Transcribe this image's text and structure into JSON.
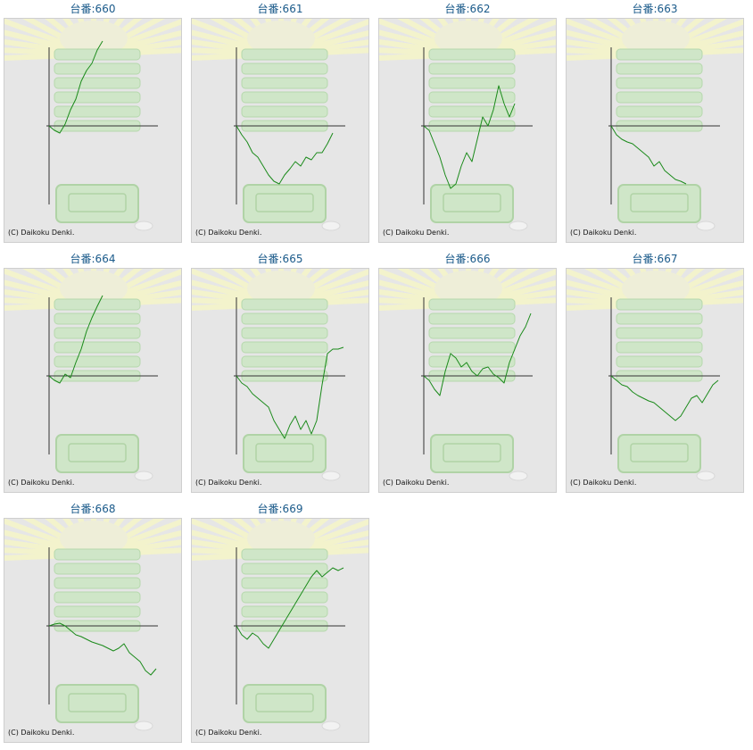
{
  "cards": [
    {
      "title": "台番:660",
      "copyright": "(C) Daikoku Denki."
    },
    {
      "title": "台番:661",
      "copyright": "(C) Daikoku Denki."
    },
    {
      "title": "台番:662",
      "copyright": "(C) Daikoku Denki."
    },
    {
      "title": "台番:663",
      "copyright": "(C) Daikoku Denki."
    },
    {
      "title": "台番:664",
      "copyright": "(C) Daikoku Denki."
    },
    {
      "title": "台番:665",
      "copyright": "(C) Daikoku Denki."
    },
    {
      "title": "台番:666",
      "copyright": "(C) Daikoku Denki."
    },
    {
      "title": "台番:667",
      "copyright": "(C) Daikoku Denki."
    },
    {
      "title": "台番:668",
      "copyright": "(C) Daikoku Denki."
    },
    {
      "title": "台番:669",
      "copyright": "(C) Daikoku Denki."
    }
  ],
  "colors": {
    "line": "#1a8a1a",
    "axis": "#333333",
    "title": "#1a5a8a",
    "panel_bg": "#e6e6e6"
  },
  "chart_data": [
    {
      "type": "line",
      "title": "台番:660",
      "xlim": [
        0,
        1
      ],
      "ylim": [
        -1,
        1
      ],
      "x": [
        0,
        0.05,
        0.1,
        0.15,
        0.2,
        0.25,
        0.3,
        0.35,
        0.4,
        0.45,
        0.5
      ],
      "values": [
        0,
        -0.05,
        -0.08,
        0.02,
        0.18,
        0.3,
        0.5,
        0.62,
        0.7,
        0.85,
        0.95
      ]
    },
    {
      "type": "line",
      "title": "台番:661",
      "xlim": [
        0,
        1
      ],
      "ylim": [
        -1,
        1
      ],
      "x": [
        0,
        0.05,
        0.1,
        0.15,
        0.2,
        0.25,
        0.3,
        0.35,
        0.4,
        0.45,
        0.5,
        0.55,
        0.6,
        0.65,
        0.7,
        0.75,
        0.8,
        0.85,
        0.9
      ],
      "values": [
        0,
        -0.1,
        -0.18,
        -0.3,
        -0.35,
        -0.45,
        -0.55,
        -0.62,
        -0.65,
        -0.55,
        -0.48,
        -0.4,
        -0.45,
        -0.35,
        -0.38,
        -0.3,
        -0.3,
        -0.2,
        -0.08
      ]
    },
    {
      "type": "line",
      "title": "台番:662",
      "xlim": [
        0,
        1
      ],
      "ylim": [
        -1,
        1
      ],
      "x": [
        0,
        0.05,
        0.1,
        0.15,
        0.2,
        0.25,
        0.3,
        0.35,
        0.4,
        0.45,
        0.5,
        0.55,
        0.6,
        0.65,
        0.7,
        0.75,
        0.8,
        0.85
      ],
      "values": [
        0,
        -0.05,
        -0.2,
        -0.35,
        -0.55,
        -0.7,
        -0.65,
        -0.45,
        -0.3,
        -0.4,
        -0.15,
        0.1,
        0.0,
        0.18,
        0.45,
        0.25,
        0.1,
        0.25
      ]
    },
    {
      "type": "line",
      "title": "台番:663",
      "xlim": [
        0,
        1
      ],
      "ylim": [
        -1,
        1
      ],
      "x": [
        0,
        0.05,
        0.1,
        0.15,
        0.2,
        0.25,
        0.3,
        0.35,
        0.4,
        0.45,
        0.5,
        0.55,
        0.6,
        0.65,
        0.7
      ],
      "values": [
        0,
        -0.1,
        -0.15,
        -0.18,
        -0.2,
        -0.25,
        -0.3,
        -0.35,
        -0.45,
        -0.4,
        -0.5,
        -0.55,
        -0.6,
        -0.62,
        -0.65
      ]
    },
    {
      "type": "line",
      "title": "台番:664",
      "xlim": [
        0,
        1
      ],
      "ylim": [
        -1,
        1
      ],
      "x": [
        0,
        0.05,
        0.1,
        0.15,
        0.2,
        0.25,
        0.3,
        0.35,
        0.4,
        0.45,
        0.5
      ],
      "values": [
        0,
        -0.05,
        -0.08,
        0.02,
        -0.02,
        0.15,
        0.3,
        0.5,
        0.65,
        0.78,
        0.9
      ]
    },
    {
      "type": "line",
      "title": "台番:665",
      "xlim": [
        0,
        1
      ],
      "ylim": [
        -1,
        1
      ],
      "x": [
        0,
        0.05,
        0.1,
        0.15,
        0.2,
        0.25,
        0.3,
        0.35,
        0.4,
        0.45,
        0.5,
        0.55,
        0.6,
        0.65,
        0.7,
        0.75,
        0.8,
        0.85,
        0.9,
        0.95,
        1.0
      ],
      "values": [
        0,
        -0.08,
        -0.12,
        -0.2,
        -0.25,
        -0.3,
        -0.35,
        -0.5,
        -0.6,
        -0.7,
        -0.55,
        -0.45,
        -0.6,
        -0.5,
        -0.65,
        -0.5,
        -0.1,
        0.25,
        0.3,
        0.3,
        0.32
      ]
    },
    {
      "type": "line",
      "title": "台番:666",
      "xlim": [
        0,
        1
      ],
      "ylim": [
        -1,
        1
      ],
      "x": [
        0,
        0.05,
        0.1,
        0.15,
        0.2,
        0.25,
        0.3,
        0.35,
        0.4,
        0.45,
        0.5,
        0.55,
        0.6,
        0.65,
        0.7,
        0.75,
        0.8,
        0.85,
        0.9,
        0.95,
        1.0
      ],
      "values": [
        0,
        -0.05,
        -0.15,
        -0.22,
        0.05,
        0.25,
        0.2,
        0.1,
        0.15,
        0.05,
        0.0,
        0.08,
        0.1,
        0.02,
        -0.02,
        -0.08,
        0.15,
        0.3,
        0.45,
        0.55,
        0.7
      ]
    },
    {
      "type": "line",
      "title": "台番:667",
      "xlim": [
        0,
        1
      ],
      "ylim": [
        -1,
        1
      ],
      "x": [
        0,
        0.05,
        0.1,
        0.15,
        0.2,
        0.25,
        0.3,
        0.35,
        0.4,
        0.45,
        0.5,
        0.55,
        0.6,
        0.65,
        0.7,
        0.75,
        0.8,
        0.85,
        0.9,
        0.95,
        1.0
      ],
      "values": [
        0,
        -0.05,
        -0.1,
        -0.12,
        -0.18,
        -0.22,
        -0.25,
        -0.28,
        -0.3,
        -0.35,
        -0.4,
        -0.45,
        -0.5,
        -0.45,
        -0.35,
        -0.25,
        -0.22,
        -0.3,
        -0.2,
        -0.1,
        -0.05
      ]
    },
    {
      "type": "line",
      "title": "台番:668",
      "xlim": [
        0,
        1
      ],
      "ylim": [
        -1,
        1
      ],
      "x": [
        0,
        0.05,
        0.1,
        0.15,
        0.2,
        0.25,
        0.3,
        0.35,
        0.4,
        0.45,
        0.5,
        0.55,
        0.6,
        0.65,
        0.7,
        0.75,
        0.8,
        0.85,
        0.9,
        0.95,
        1.0
      ],
      "values": [
        0,
        0.02,
        0.03,
        0.0,
        -0.05,
        -0.1,
        -0.12,
        -0.15,
        -0.18,
        -0.2,
        -0.22,
        -0.25,
        -0.28,
        -0.25,
        -0.2,
        -0.3,
        -0.35,
        -0.4,
        -0.5,
        -0.55,
        -0.48
      ]
    },
    {
      "type": "line",
      "title": "台番:669",
      "xlim": [
        0,
        1
      ],
      "ylim": [
        -1,
        1
      ],
      "x": [
        0,
        0.05,
        0.1,
        0.15,
        0.2,
        0.25,
        0.3,
        0.35,
        0.4,
        0.45,
        0.5,
        0.55,
        0.6,
        0.65,
        0.7,
        0.75,
        0.8,
        0.85,
        0.9,
        0.95,
        1.0
      ],
      "values": [
        0,
        -0.1,
        -0.15,
        -0.08,
        -0.12,
        -0.2,
        -0.25,
        -0.15,
        -0.05,
        0.05,
        0.15,
        0.25,
        0.35,
        0.45,
        0.55,
        0.62,
        0.55,
        0.6,
        0.65,
        0.62,
        0.65
      ]
    }
  ]
}
